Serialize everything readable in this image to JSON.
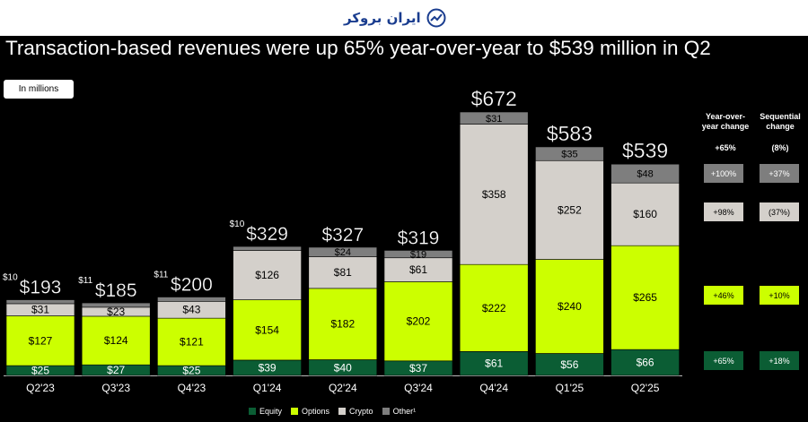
{
  "header": {
    "logo_text": "ایران بروکر"
  },
  "title": "Transaction-based revenues were up 65% year-over-year to $539 million in Q2",
  "unit_label": "In millions",
  "colors": {
    "equity": "#0b5d34",
    "options": "#ccff00",
    "crypto": "#d4d0cb",
    "other": "#7e7e7e"
  },
  "changes": {
    "yoy_header": "Year-over-year change",
    "seq_header": "Sequential change",
    "yoy_total": "+65%",
    "seq_total": "(8%)",
    "rows": [
      {
        "series": "Other",
        "yoy": "+100%",
        "seq": "+37%"
      },
      {
        "series": "Crypto",
        "yoy": "+98%",
        "seq": "(37%)"
      },
      {
        "series": "Options",
        "yoy": "+46%",
        "seq": "+10%"
      },
      {
        "series": "Equity",
        "yoy": "+65%",
        "seq": "+18%"
      }
    ]
  },
  "chart_data": {
    "type": "bar",
    "stacked": true,
    "title": "Transaction-based revenues",
    "ylabel": "In millions",
    "categories": [
      "Q2'23",
      "Q3'23",
      "Q4'23",
      "Q1'24",
      "Q2'24",
      "Q3'24",
      "Q4'24",
      "Q1'25",
      "Q2'25"
    ],
    "series": [
      {
        "name": "Equity",
        "values": [
          25,
          27,
          25,
          39,
          40,
          37,
          61,
          56,
          66
        ]
      },
      {
        "name": "Options",
        "values": [
          127,
          124,
          121,
          154,
          182,
          202,
          222,
          240,
          265
        ]
      },
      {
        "name": "Crypto",
        "values": [
          31,
          23,
          43,
          126,
          81,
          61,
          358,
          252,
          160
        ]
      },
      {
        "name": "Other",
        "values": [
          10,
          11,
          11,
          10,
          24,
          19,
          31,
          35,
          48
        ]
      }
    ],
    "value_labels": {
      "Equity": [
        "$25",
        "$27",
        "$25",
        "$39",
        "$40",
        "$37",
        "$61",
        "$56",
        "$66"
      ],
      "Options": [
        "$127",
        "$124",
        "$121",
        "$154",
        "$182",
        "$202",
        "$222",
        "$240",
        "$265"
      ],
      "Crypto": [
        "$31",
        "$23",
        "$43",
        "$126",
        "$81",
        "$61",
        "$358",
        "$252",
        "$160"
      ],
      "Other": [
        "$10",
        "$11",
        "$11",
        "$10",
        "$24",
        "$19",
        "$31",
        "$35",
        "$48"
      ]
    },
    "other_label_outside": [
      true,
      true,
      true,
      true,
      false,
      false,
      false,
      false,
      false
    ],
    "totals": [
      193,
      185,
      200,
      329,
      327,
      319,
      672,
      583,
      539
    ],
    "total_labels": [
      "$193",
      "$185",
      "$200",
      "$329",
      "$327",
      "$319",
      "$672",
      "$583",
      "$539"
    ],
    "legend": [
      "Equity",
      "Options",
      "Crypto",
      "Other¹"
    ],
    "ylim": [
      0,
      700
    ]
  }
}
